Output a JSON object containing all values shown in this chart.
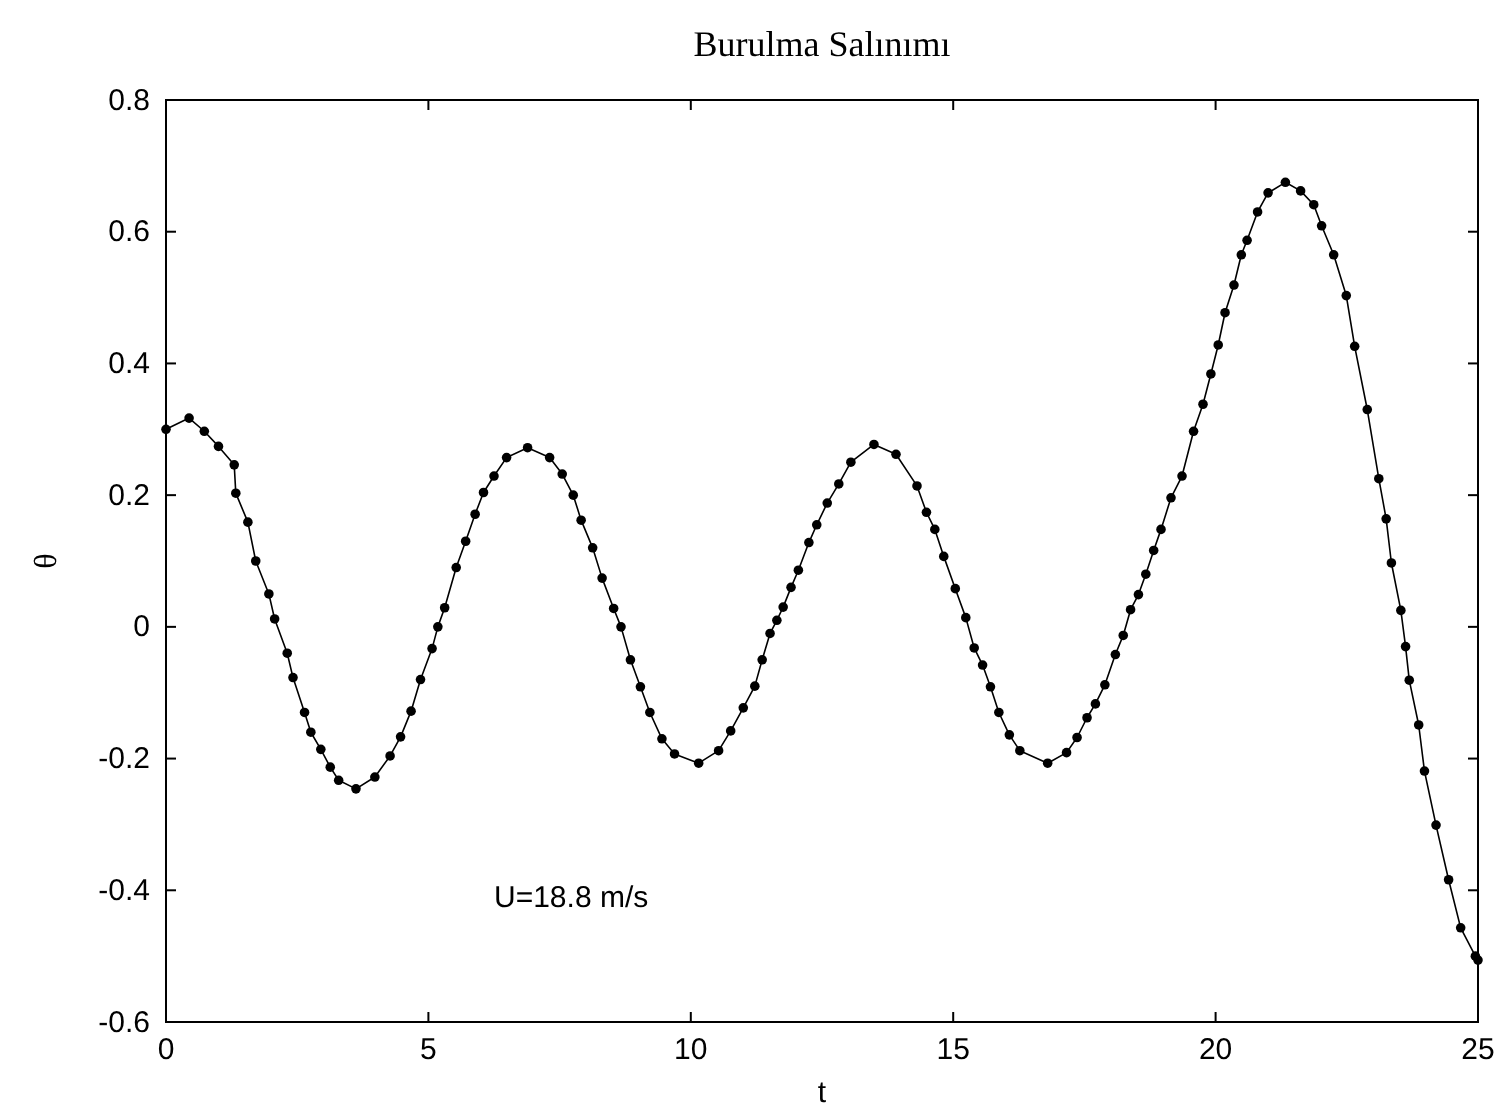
{
  "chart_data": {
    "type": "line",
    "title": "Burulma Salınımı",
    "xlabel": "t",
    "ylabel": "θ",
    "xlim": [
      0,
      25
    ],
    "xticks": [
      0,
      5,
      10,
      15,
      20,
      25
    ],
    "ylim": [
      -0.6,
      0.8
    ],
    "yticks": [
      -0.6,
      -0.4,
      -0.2,
      0,
      0.2,
      0.4,
      0.6,
      0.8
    ],
    "marker": "circle",
    "line_style": "solid",
    "annotations": [
      "U=18.8 m/s"
    ],
    "series": [
      {
        "color": "#000000",
        "x": [
          0,
          0.44,
          0.73,
          1.0,
          1.3,
          1.33,
          1.56,
          1.71,
          1.96,
          2.07,
          2.31,
          2.42,
          2.64,
          2.76,
          2.95,
          3.13,
          3.29,
          3.62,
          3.98,
          4.27,
          4.47,
          4.67,
          4.85,
          5.07,
          5.18,
          5.31,
          5.53,
          5.71,
          5.89,
          6.05,
          6.25,
          6.49,
          6.89,
          7.31,
          7.55,
          7.76,
          7.91,
          8.13,
          8.31,
          8.53,
          8.67,
          8.85,
          9.04,
          9.22,
          9.45,
          9.69,
          10.15,
          10.53,
          10.76,
          11.0,
          11.22,
          11.36,
          11.51,
          11.64,
          11.76,
          11.91,
          12.05,
          12.25,
          12.4,
          12.6,
          12.82,
          13.05,
          13.49,
          13.91,
          14.31,
          14.49,
          14.65,
          14.82,
          15.04,
          15.24,
          15.4,
          15.56,
          15.71,
          15.87,
          16.07,
          16.27,
          16.8,
          17.16,
          17.36,
          17.55,
          17.71,
          17.89,
          18.09,
          18.24,
          18.38,
          18.53,
          18.67,
          18.82,
          18.96,
          19.15,
          19.36,
          19.58,
          19.76,
          19.91,
          20.05,
          20.18,
          20.35,
          20.49,
          20.6,
          20.8,
          21.0,
          21.33,
          21.62,
          21.87,
          22.02,
          22.25,
          22.49,
          22.65,
          22.89,
          23.11,
          23.25,
          23.35,
          23.53,
          23.62,
          23.69,
          23.87,
          23.98,
          24.2,
          24.44,
          24.67,
          24.95,
          25.0
        ],
        "values": [
          0.3,
          0.317,
          0.297,
          0.274,
          0.246,
          0.203,
          0.159,
          0.1,
          0.05,
          0.012,
          -0.04,
          -0.077,
          -0.13,
          -0.16,
          -0.186,
          -0.213,
          -0.233,
          -0.246,
          -0.228,
          -0.196,
          -0.167,
          -0.128,
          -0.08,
          -0.033,
          0,
          0.029,
          0.09,
          0.13,
          0.171,
          0.204,
          0.229,
          0.257,
          0.272,
          0.257,
          0.232,
          0.2,
          0.162,
          0.12,
          0.074,
          0.028,
          0,
          -0.05,
          -0.091,
          -0.13,
          -0.17,
          -0.193,
          -0.207,
          -0.188,
          -0.158,
          -0.123,
          -0.09,
          -0.05,
          -0.01,
          0.01,
          0.03,
          0.06,
          0.086,
          0.128,
          0.155,
          0.188,
          0.217,
          0.25,
          0.277,
          0.262,
          0.214,
          0.174,
          0.148,
          0.107,
          0.058,
          0.014,
          -0.032,
          -0.058,
          -0.091,
          -0.13,
          -0.164,
          -0.188,
          -0.207,
          -0.191,
          -0.168,
          -0.138,
          -0.117,
          -0.088,
          -0.042,
          -0.013,
          0.026,
          0.049,
          0.08,
          0.116,
          0.148,
          0.196,
          0.229,
          0.297,
          0.338,
          0.384,
          0.428,
          0.477,
          0.519,
          0.565,
          0.587,
          0.63,
          0.659,
          0.675,
          0.662,
          0.641,
          0.609,
          0.565,
          0.503,
          0.426,
          0.33,
          0.225,
          0.164,
          0.097,
          0.025,
          -0.03,
          -0.081,
          -0.149,
          -0.219,
          -0.301,
          -0.384,
          -0.457,
          -0.5,
          -0.506
        ]
      }
    ]
  }
}
